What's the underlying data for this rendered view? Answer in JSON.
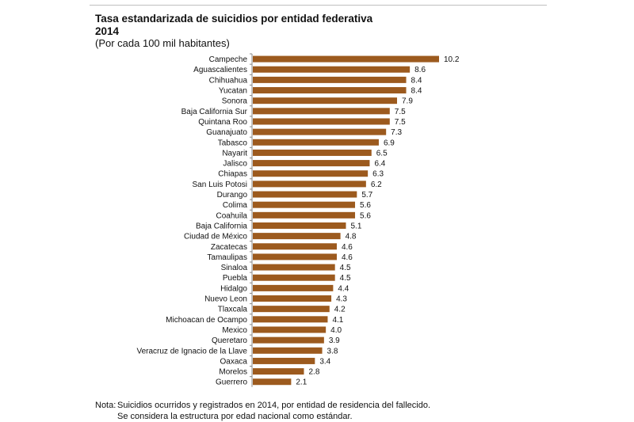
{
  "header": {
    "title": "Tasa estandarizada de suicidios  por entidad federativa",
    "year": "2014",
    "subtitle": "(Por cada 100 mil habitantes)"
  },
  "chart_data": {
    "type": "bar",
    "orientation": "horizontal",
    "bar_color": "#9c5a1e",
    "categories": [
      "Campeche",
      "Aguascalientes",
      "Chihuahua",
      "Yucatan",
      "Sonora",
      "Baja California Sur",
      "Quintana Roo",
      "Guanajuato",
      "Tabasco",
      "Nayarit",
      "Jalisco",
      "Chiapas",
      "San Luis Potosi",
      "Durango",
      "Colima",
      "Coahuila",
      "Baja California",
      "Ciudad de México",
      "Zacatecas",
      "Tamaulipas",
      "Sinaloa",
      "Puebla",
      "Hidalgo",
      "Nuevo Leon",
      "Tlaxcala",
      "Michoacan de Ocampo",
      "Mexico",
      "Queretaro",
      "Veracruz de Ignacio de la Llave",
      "Oaxaca",
      "Morelos",
      "Guerrero"
    ],
    "values": [
      10.2,
      8.6,
      8.4,
      8.4,
      7.9,
      7.5,
      7.5,
      7.3,
      6.9,
      6.5,
      6.4,
      6.3,
      6.2,
      5.7,
      5.6,
      5.6,
      5.1,
      4.8,
      4.6,
      4.6,
      4.5,
      4.5,
      4.4,
      4.3,
      4.2,
      4.1,
      4.0,
      3.9,
      3.8,
      3.4,
      2.8,
      2.1
    ],
    "value_labels": [
      "10.2",
      "8.6",
      "8.4",
      "8.4",
      "7.9",
      "7.5",
      "7.5",
      "7.3",
      "6.9",
      "6.5",
      "6.4",
      "6.3",
      "6.2",
      "5.7",
      "5.6",
      "5.6",
      "5.1",
      "4.8",
      "4.6",
      "4.6",
      "4.5",
      "4.5",
      "4.4",
      "4.3",
      "4.2",
      "4.1",
      "4.0",
      "3.9",
      "3.8",
      "3.4",
      "2.8",
      "2.1"
    ],
    "xlim": [
      0,
      10.2
    ],
    "grid": false,
    "legend": "none"
  },
  "note": {
    "prefix": "Nota:",
    "line1": "Suicidios ocurridos y registrados en 2014, por entidad de residencia del fallecido.",
    "line2": "Se considera la estructura por edad nacional como estándar."
  }
}
